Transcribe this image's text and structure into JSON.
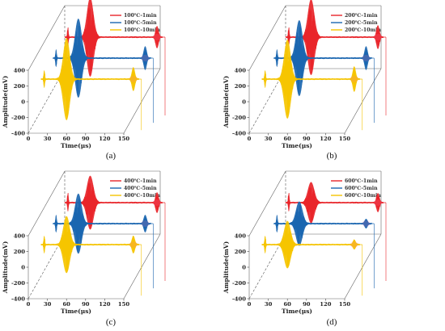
{
  "chart_data": [
    {
      "panel": "(a)",
      "type": "line",
      "xlabel": "Time(μs)",
      "ylabel": "Amplitude(mV)",
      "xticks": [
        "0",
        "30",
        "60",
        "90",
        "120",
        "150"
      ],
      "yticks": [
        "-400",
        "-200",
        "0",
        "200",
        "400"
      ],
      "xlim": [
        0,
        150
      ],
      "ylim": [
        -400,
        400
      ],
      "colors": [
        "#e8252a",
        "#1a66b0",
        "#f5c400"
      ],
      "series": [
        {
          "name": "100℃-1min",
          "peak_amplitude": 500,
          "peak_time": 40,
          "end_peak_amplitude": 140,
          "end_peak_time": 145
        },
        {
          "name": "100℃-5min",
          "peak_amplitude": 500,
          "peak_time": 40,
          "end_peak_amplitude": 150,
          "end_peak_time": 145
        },
        {
          "name": "100℃-10min",
          "peak_amplitude": 520,
          "peak_time": 40,
          "end_peak_amplitude": 150,
          "end_peak_time": 145
        }
      ]
    },
    {
      "panel": "(b)",
      "type": "line",
      "xlabel": "Time(μs)",
      "ylabel": "Amplitude(mV)",
      "xticks": [
        "0",
        "30",
        "60",
        "90",
        "120",
        "150"
      ],
      "yticks": [
        "-400",
        "-200",
        "0",
        "200",
        "400"
      ],
      "xlim": [
        0,
        150
      ],
      "ylim": [
        -400,
        400
      ],
      "colors": [
        "#e8252a",
        "#1a66b0",
        "#f5c400"
      ],
      "series": [
        {
          "name": "200℃-1min",
          "peak_amplitude": 480,
          "peak_time": 40,
          "end_peak_amplitude": 150,
          "end_peak_time": 145
        },
        {
          "name": "200℃-5min",
          "peak_amplitude": 480,
          "peak_time": 40,
          "end_peak_amplitude": 150,
          "end_peak_time": 145
        },
        {
          "name": "200℃-10min",
          "peak_amplitude": 500,
          "peak_time": 40,
          "end_peak_amplitude": 160,
          "end_peak_time": 145
        }
      ]
    },
    {
      "panel": "(c)",
      "type": "line",
      "xlabel": "Time(μs)",
      "ylabel": "Amplitude(mV)",
      "xticks": [
        "0",
        "30",
        "60",
        "90",
        "120",
        "150"
      ],
      "yticks": [
        "-400",
        "-200",
        "0",
        "200",
        "400"
      ],
      "xlim": [
        0,
        150
      ],
      "ylim": [
        -400,
        400
      ],
      "colors": [
        "#e8252a",
        "#1a66b0",
        "#f5c400"
      ],
      "series": [
        {
          "name": "400℃-1min",
          "peak_amplitude": 340,
          "peak_time": 40,
          "end_peak_amplitude": 130,
          "end_peak_time": 145
        },
        {
          "name": "400℃-5min",
          "peak_amplitude": 380,
          "peak_time": 40,
          "end_peak_amplitude": 110,
          "end_peak_time": 145
        },
        {
          "name": "400℃-10min",
          "peak_amplitude": 360,
          "peak_time": 40,
          "end_peak_amplitude": 110,
          "end_peak_time": 145
        }
      ]
    },
    {
      "panel": "(d)",
      "type": "line",
      "xlabel": "Time(μs)",
      "ylabel": "Amplitude(mV)",
      "xticks": [
        "0",
        "30",
        "60",
        "90",
        "120",
        "150"
      ],
      "yticks": [
        "-400",
        "-200",
        "0",
        "200",
        "400"
      ],
      "xlim": [
        0,
        150
      ],
      "ylim": [
        -400,
        400
      ],
      "colors": [
        "#e8252a",
        "#1a66b0",
        "#f5c400"
      ],
      "series": [
        {
          "name": "600℃-1min",
          "peak_amplitude": 260,
          "peak_time": 40,
          "end_peak_amplitude": 120,
          "end_peak_time": 145
        },
        {
          "name": "600℃-5min",
          "peak_amplitude": 280,
          "peak_time": 40,
          "end_peak_amplitude": 60,
          "end_peak_time": 145
        },
        {
          "name": "600℃-10min",
          "peak_amplitude": 300,
          "peak_time": 40,
          "end_peak_amplitude": 60,
          "end_peak_time": 145
        }
      ]
    }
  ]
}
